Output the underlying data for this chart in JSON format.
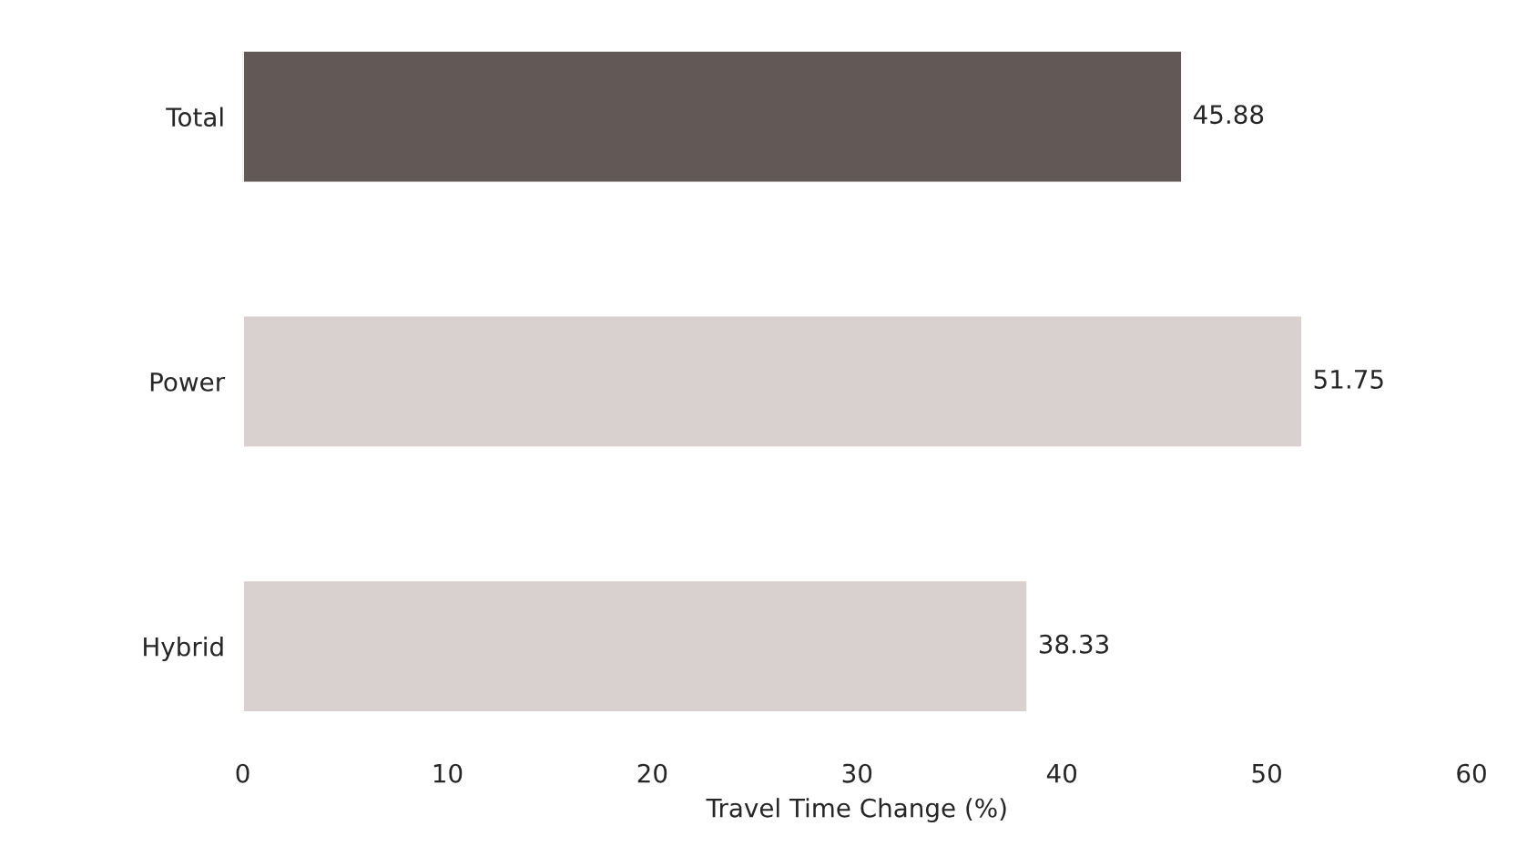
{
  "chart_data": {
    "type": "bar",
    "orientation": "horizontal",
    "xlabel": "Travel Time Change (%)",
    "categories": [
      "Total",
      "Power",
      "Hybrid"
    ],
    "values": [
      45.88,
      51.75,
      38.33
    ],
    "colors": [
      "#625856",
      "#d9d1cf",
      "#d9d1cf"
    ],
    "data_labels": true,
    "xlim": [
      0,
      60
    ],
    "xticks": [
      0,
      10,
      20,
      30,
      40,
      50,
      60
    ],
    "grid": false,
    "legend": false
  }
}
